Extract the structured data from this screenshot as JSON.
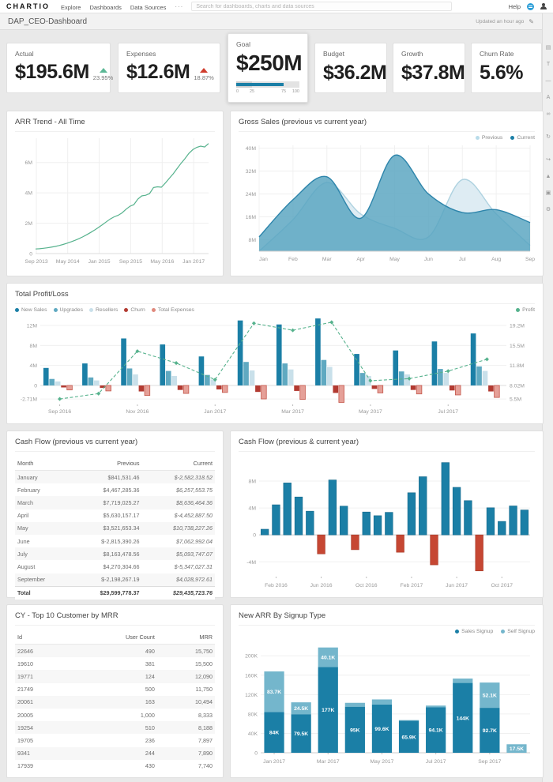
{
  "nav": {
    "brand": "CHARTIO",
    "links": [
      "Explore",
      "Dashboards",
      "Data Sources"
    ],
    "more": "···",
    "search_placeholder": "Search for dashboards, charts and data sources",
    "help": "Help"
  },
  "header": {
    "title": "DAP_CEO-Dashboard",
    "updated": "Updated an hour ago",
    "edit_glyph": "✎"
  },
  "rail_icons": [
    {
      "name": "add-chart-icon",
      "glyph": "▤"
    },
    {
      "name": "add-text-icon",
      "glyph": "T"
    },
    {
      "name": "divider-icon",
      "glyph": "—"
    },
    {
      "name": "annotation-icon",
      "glyph": "A"
    },
    {
      "name": "link-icon",
      "glyph": "∞"
    },
    {
      "name": "refresh-icon",
      "glyph": "↻"
    },
    {
      "name": "share-icon",
      "glyph": "↪"
    },
    {
      "name": "upload-icon",
      "glyph": "▲"
    },
    {
      "name": "snapshot-icon",
      "glyph": "▣"
    },
    {
      "name": "settings-gear-icon",
      "glyph": "⚙"
    }
  ],
  "kpis": {
    "actual": {
      "label": "Actual",
      "value": "$195.6M",
      "delta": "23.95%",
      "direction": "up",
      "color": "#5cb896"
    },
    "expenses": {
      "label": "Expenses",
      "value": "$12.6M",
      "delta": "18.87%",
      "direction": "up",
      "color": "#cf3c2c"
    },
    "goal": {
      "label": "Goal",
      "value": "$250M",
      "progress": 75,
      "band": 25,
      "bar_color": "#1b7fa6",
      "ticks": [
        {
          "pos": 0,
          "label": "0"
        },
        {
          "pos": 25,
          "label": "25"
        },
        {
          "pos": 75,
          "label": "75"
        },
        {
          "pos": 100,
          "label": "100"
        }
      ]
    },
    "budget": {
      "label": "Budget",
      "value": "$36.2M"
    },
    "growth": {
      "label": "Growth",
      "value": "$37.8M"
    },
    "churn": {
      "label": "Churn Rate",
      "value": "5.6%"
    }
  },
  "chart_data": [
    {
      "id": "arr",
      "type": "line",
      "title": "ARR Trend - All Time",
      "line_color": "#56b28d",
      "ylim": [
        0,
        7.6
      ],
      "yticks": [
        {
          "v": 0,
          "label": "0"
        },
        {
          "v": 2,
          "label": "2M"
        },
        {
          "v": 4,
          "label": "4M"
        },
        {
          "v": 6,
          "label": "6M"
        }
      ],
      "xticks": [
        {
          "f": 0.005,
          "label": "Sep 2013"
        },
        {
          "f": 0.186,
          "label": "May 2014"
        },
        {
          "f": 0.368,
          "label": "Jan 2015"
        },
        {
          "f": 0.55,
          "label": "Sep 2015"
        },
        {
          "f": 0.732,
          "label": "May 2016"
        },
        {
          "f": 0.914,
          "label": "Jan 2017"
        }
      ],
      "values": [
        0.3,
        0.32,
        0.35,
        0.38,
        0.42,
        0.47,
        0.53,
        0.6,
        0.68,
        0.77,
        0.87,
        0.98,
        1.1,
        1.24,
        1.39,
        1.55,
        1.72,
        1.9,
        2.09,
        2.28,
        2.42,
        2.52,
        2.68,
        2.92,
        3.12,
        3.22,
        3.58,
        3.8,
        3.84,
        3.95,
        4.35,
        4.4,
        4.37,
        4.65,
        4.95,
        5.25,
        5.6,
        5.95,
        6.25,
        6.6,
        6.85,
        7.0,
        7.08,
        7.02,
        7.25
      ]
    },
    {
      "id": "gross",
      "type": "area",
      "title": "Gross Sales (previous vs current year)",
      "legend": [
        {
          "label": "Previous",
          "color": "#b9dcea"
        },
        {
          "label": "Current",
          "color": "#1b7fa6"
        }
      ],
      "categories": [
        "Jan",
        "Feb",
        "Mar",
        "Apr",
        "May",
        "Jun",
        "Jul",
        "Aug",
        "Sep"
      ],
      "ylim": [
        4,
        41
      ],
      "yticks": [
        {
          "v": 8,
          "label": "8M"
        },
        {
          "v": 16,
          "label": "16M"
        },
        {
          "v": 24,
          "label": "24M"
        },
        {
          "v": 32,
          "label": "32M"
        },
        {
          "v": 40,
          "label": "40M"
        }
      ],
      "series": [
        {
          "name": "Previous",
          "fill": "#dcebf2",
          "stroke": "#aed2e0",
          "opacity": 0.95,
          "values": [
            4,
            15,
            28,
            17,
            12,
            9,
            29,
            17,
            6
          ]
        },
        {
          "name": "Current",
          "fill": "#57a3bf",
          "stroke": "#2e85ab",
          "opacity": 0.82,
          "values": [
            9,
            22,
            30,
            15.5,
            37.5,
            24,
            17.5,
            18.5,
            14
          ]
        }
      ]
    },
    {
      "id": "pl",
      "type": "combo",
      "title": "Total Profit/Loss",
      "legend_left": [
        {
          "label": "New Sales",
          "color": "#1b7fa6"
        },
        {
          "label": "Upgrades",
          "color": "#5fa9c1"
        },
        {
          "label": "Resellers",
          "color": "#c9e0ea"
        },
        {
          "label": "Churn",
          "color": "#b23a31"
        },
        {
          "label": "Total Expenses",
          "color": "#e0897d"
        }
      ],
      "legend_right": [
        {
          "label": "Profit",
          "color": "#56b28d"
        }
      ],
      "categories": [
        "Sep 2016",
        "Oct 2016",
        "Nov 2016",
        "Dec 2016",
        "Jan 2017",
        "Feb 2017",
        "Mar 2017",
        "Apr 2017",
        "May 2017",
        "Jun 2017",
        "Jul 2017",
        "Aug 2017"
      ],
      "xtick_idx": [
        0,
        2,
        4,
        6,
        8,
        10
      ],
      "xtick_labels": [
        "Sep 2016",
        "Nov 2016",
        "Jan 2017",
        "Mar 2017",
        "May 2017",
        "Jul 2017"
      ],
      "ylim_left": [
        -3.8,
        13.9
      ],
      "yticks_left": [
        {
          "v": 12,
          "label": "12M"
        },
        {
          "v": 8,
          "label": "8M"
        },
        {
          "v": 4,
          "label": "4M"
        },
        {
          "v": 0,
          "label": "0"
        },
        {
          "v": -2.71,
          "label": "-2.71M"
        }
      ],
      "yticks_right_labels": [
        "19.2M",
        "15.5M",
        "11.8M",
        "8.02M",
        "5.5M"
      ],
      "right_axis": {
        "min": 5.5,
        "max": 19.2,
        "left_min": -2.71,
        "left_max": 12
      },
      "series": [
        {
          "name": "New Sales",
          "color": "#1b7fa6",
          "values": [
            3.5,
            4.4,
            9.4,
            8.2,
            5.8,
            13.0,
            12.2,
            13.4,
            6.3,
            7.0,
            8.8,
            10.4
          ]
        },
        {
          "name": "Upgrades",
          "color": "#5fa9c1",
          "values": [
            1.3,
            1.6,
            3.4,
            2.9,
            2.1,
            4.7,
            4.4,
            5.1,
            2.5,
            2.8,
            3.3,
            3.8
          ]
        },
        {
          "name": "Resellers",
          "color": "#c9e0ea",
          "values": [
            0.8,
            1.0,
            2.2,
            1.9,
            1.2,
            3.0,
            3.2,
            3.7,
            1.9,
            2.2,
            2.5,
            2.9
          ]
        },
        {
          "name": "Churn",
          "color": "#b23a31",
          "values": [
            -0.4,
            -0.5,
            -1.2,
            -0.9,
            -0.8,
            -1.3,
            -1.1,
            -1.5,
            -0.7,
            -0.9,
            -1.0,
            -1.2
          ]
        },
        {
          "name": "Total Expenses",
          "color": "#e5a098",
          "stroke": "#c4564a",
          "values": [
            -0.9,
            -1.1,
            -2.0,
            -1.6,
            -1.4,
            -2.7,
            -2.8,
            -3.4,
            -1.5,
            -1.7,
            -1.9,
            -2.4
          ]
        }
      ],
      "profit": {
        "name": "Profit",
        "color": "#56b28d",
        "values": [
          5.5,
          6.5,
          14.4,
          12.2,
          9.1,
          19.6,
          18.3,
          19.8,
          8.9,
          9.3,
          10.7,
          12.9
        ]
      }
    },
    {
      "id": "cashflow",
      "type": "bar",
      "title": "Cash Flow (previous & current year)",
      "pos_color": "#1b7fa6",
      "neg_color": "#c64733",
      "categories": [
        "Jan 2016",
        "Feb 2016",
        "Mar 2016",
        "Apr 2016",
        "May 2016",
        "Jun 2016",
        "Jul 2016",
        "Aug 2016",
        "Sep 2016",
        "Oct 2016",
        "Nov 2016",
        "Dec 2016",
        "Jan 2017",
        "Feb 2017",
        "Mar 2017",
        "Apr 2017",
        "May 2017",
        "Jun 2017",
        "Jul 2017",
        "Aug 2017",
        "Sep 2017",
        "Oct 2017",
        "Nov 2017",
        "Dec 2017"
      ],
      "values": [
        0.84,
        4.47,
        7.72,
        5.63,
        3.52,
        -2.82,
        8.16,
        4.27,
        -2.2,
        3.4,
        2.85,
        3.35,
        -2.58,
        6.26,
        8.64,
        -4.45,
        10.74,
        7.06,
        5.09,
        -5.35,
        4.03,
        2.0,
        4.3,
        3.7
      ],
      "ylim": [
        -6.2,
        11.4
      ],
      "yticks": [
        {
          "v": -4,
          "label": "-4M"
        },
        {
          "v": 0,
          "label": "0"
        },
        {
          "v": 4,
          "label": "4M"
        },
        {
          "v": 8,
          "label": "8M"
        }
      ],
      "xtick_idx": [
        1,
        5,
        9,
        13,
        17,
        21
      ],
      "xtick_labels": [
        "Feb 2016",
        "Jun 2016",
        "Oct 2016",
        "Feb 2017",
        "Jun 2017",
        "Oct 2017"
      ]
    },
    {
      "id": "arrsignup",
      "type": "stacked",
      "title": "New ARR By Signup Type",
      "legend": [
        {
          "label": "Sales Signup",
          "color": "#1b7fa6"
        },
        {
          "label": "Self Signup",
          "color": "#74b6cc"
        }
      ],
      "categories": [
        "Jan 2017",
        "Feb 2017",
        "Mar 2017",
        "Apr 2017",
        "May 2017",
        "Jun 2017",
        "Jul 2017",
        "Aug 2017",
        "Sep 2017",
        "Oct 2017"
      ],
      "ylim": [
        0,
        228
      ],
      "yticks": [
        {
          "v": 0,
          "label": "0"
        },
        {
          "v": 40,
          "label": "40K"
        },
        {
          "v": 80,
          "label": "80K"
        },
        {
          "v": 120,
          "label": "120K"
        },
        {
          "v": 160,
          "label": "160K"
        },
        {
          "v": 200,
          "label": "200K"
        }
      ],
      "xtick_idx": [
        0,
        2,
        4,
        6,
        8
      ],
      "xtick_labels": [
        "Jan 2017",
        "Mar 2017",
        "May 2017",
        "Jul 2017",
        "Sep 2017"
      ],
      "series": [
        {
          "name": "Sales Signup",
          "color": "#1b7fa6",
          "values": [
            84,
            79.5,
            177,
            95,
            99.6,
            65.9,
            94.1,
            144,
            92.7,
            0
          ],
          "labels": [
            "84K",
            "79.5K",
            "177K",
            "95K",
            "99.6K",
            "65.9K",
            "94.1K",
            "144K",
            "92.7K",
            null
          ]
        },
        {
          "name": "Self Signup",
          "color": "#74b6cc",
          "values": [
            83.7,
            24.5,
            40.1,
            8,
            10.4,
            1.5,
            3.2,
            9,
            52.1,
            17.5
          ],
          "labels": [
            "83.7K",
            "24.5K",
            "40.1K",
            null,
            null,
            null,
            null,
            null,
            "52.1K",
            "17.5K"
          ]
        }
      ]
    }
  ],
  "tables": {
    "cash_flow": {
      "title": "Cash Flow (previous vs current year)",
      "headers": [
        "Month",
        "Previous",
        "Current"
      ],
      "rows": [
        [
          "January",
          "$841,531.46",
          "$-2,582,318.52"
        ],
        [
          "February",
          "$4,467,285.36",
          "$6,257,553.75"
        ],
        [
          "March",
          "$7,719,025.27",
          "$8,636,464.36"
        ],
        [
          "April",
          "$5,630,157.17",
          "$-4,452,887.50"
        ],
        [
          "May",
          "$3,521,653.34",
          "$10,738,227.26"
        ],
        [
          "June",
          "$-2,815,390.26",
          "$7,062,992.04"
        ],
        [
          "July",
          "$8,163,478.56",
          "$5,093,747.07"
        ],
        [
          "August",
          "$4,270,304.66",
          "$-5,347,027.31"
        ],
        [
          "September",
          "$-2,198,267.19",
          "$4,028,972.61"
        ]
      ],
      "total": [
        "Total",
        "$29,599,778.37",
        "$29,435,723.76"
      ]
    },
    "top_mrr": {
      "title": "CY - Top 10 Customer by MRR",
      "headers": [
        "Id",
        "User Count",
        "MRR"
      ],
      "rows": [
        [
          "22646",
          "490",
          "15,750"
        ],
        [
          "19610",
          "381",
          "15,500"
        ],
        [
          "19771",
          "124",
          "12,090"
        ],
        [
          "21749",
          "500",
          "11,750"
        ],
        [
          "20061",
          "163",
          "10,494"
        ],
        [
          "20005",
          "1,000",
          "8,333"
        ],
        [
          "19254",
          "510",
          "8,188"
        ],
        [
          "19705",
          "236",
          "7,897"
        ],
        [
          "9341",
          "244",
          "7,890"
        ],
        [
          "17939",
          "430",
          "7,740"
        ]
      ]
    }
  }
}
